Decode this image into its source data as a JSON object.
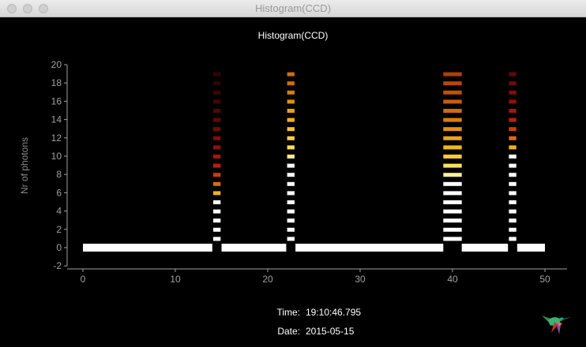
{
  "window": {
    "title": "Histogram(CCD)"
  },
  "chart_data": {
    "type": "bar",
    "title": "Histogram(CCD)",
    "ylabel": "Nr of photons",
    "xlabel": "",
    "xlim": [
      -1,
      52
    ],
    "ylim": [
      -2,
      20
    ],
    "x_ticks": [
      0,
      10,
      20,
      30,
      40,
      50
    ],
    "y_ticks": [
      -2,
      0,
      2,
      4,
      6,
      8,
      10,
      12,
      14,
      16,
      18,
      20
    ],
    "baseline_segments": [
      [
        0,
        14
      ],
      [
        15,
        22
      ],
      [
        23,
        39
      ],
      [
        41,
        46
      ],
      [
        47,
        50
      ]
    ],
    "columns": [
      {
        "x": 14.5,
        "count": 19,
        "colored_from": 6,
        "palette": "red"
      },
      {
        "x": 22.5,
        "count": 19,
        "colored_from": 10,
        "palette": "yellow"
      },
      {
        "x": 40,
        "count": 19,
        "colored_from": 8,
        "palette": "orange",
        "width": 2
      },
      {
        "x": 46.5,
        "count": 19,
        "colored_from": 11,
        "palette": "red"
      }
    ],
    "grid": false
  },
  "colors": {
    "background": "#000000",
    "axis": "#a0a0a0",
    "text": "#ffffff",
    "axis_label": "#8a8a8a"
  },
  "info": {
    "time_label": "Time:",
    "time_value": "19:10:46.795",
    "date_label": "Date:",
    "date_value": "2015-05-15"
  },
  "icons": {
    "logo": "hummingbird-icon"
  }
}
